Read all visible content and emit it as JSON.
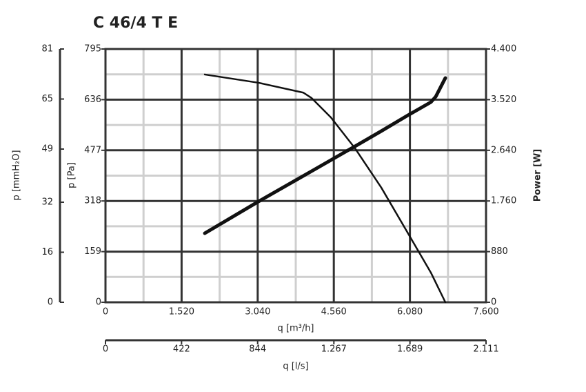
{
  "chart_data": {
    "type": "line",
    "title": "C 46/4 T E",
    "xlabel": "q [m³/h]",
    "ylabel": "p [Pa]",
    "y2label": "Power [W]",
    "y3label": "p [mmH₂O]",
    "x2label": "q [l/s]",
    "xlim": [
      0,
      7600
    ],
    "xticks": [
      0,
      {
        "value": 1520,
        "label": "1.520"
      },
      {
        "value": 3040,
        "label": "3.040"
      },
      {
        "value": 4560,
        "label": "4.560"
      },
      {
        "value": 6080,
        "label": "6.080"
      },
      {
        "value": 7600,
        "label": "7.600"
      }
    ],
    "x_minor_ticks": [
      760,
      2280,
      3800,
      5320,
      6840
    ],
    "ylim": [
      0,
      795
    ],
    "yticks": [
      0,
      159,
      318,
      477,
      636,
      795
    ],
    "y_minor_ticks": [
      79.5,
      238.5,
      397.5,
      556.5,
      715.5
    ],
    "y2lim": [
      0,
      4400
    ],
    "y2ticks": [
      0,
      880,
      {
        "value": 1760,
        "label": "1.760"
      },
      {
        "value": 2640,
        "label": "2.640"
      },
      {
        "value": 3520,
        "label": "3.520"
      },
      {
        "value": 4400,
        "label": "4.400"
      }
    ],
    "y3lim": [
      0,
      81
    ],
    "y3ticks": [
      0,
      16,
      32,
      49,
      65,
      81
    ],
    "x2lim": [
      0,
      2111
    ],
    "x2ticks": [
      0,
      422,
      844,
      {
        "value": 1267,
        "label": "1.267"
      },
      {
        "value": 1689,
        "label": "1.689"
      },
      {
        "value": 2111,
        "label": "2.111"
      }
    ],
    "grid": true,
    "series": [
      {
        "color": "#111111",
        "x": [
          1983,
          3057,
          3952,
          4117,
          4503,
          4985,
          5508,
          6017,
          6499,
          6788
        ],
        "values": [
          715,
          689,
          658,
          641,
          580,
          483,
          360,
          223,
          93,
          0
        ]
      },
      {
        "color": "#111111",
        "axis": "y2",
        "x": [
          1983,
          3057,
          4117,
          4985,
          5508,
          6017,
          6499,
          6596,
          6788
        ],
        "values": [
          1199,
          1751,
          2278,
          2710,
          2974,
          3237,
          3477,
          3573,
          3897
        ]
      }
    ]
  }
}
